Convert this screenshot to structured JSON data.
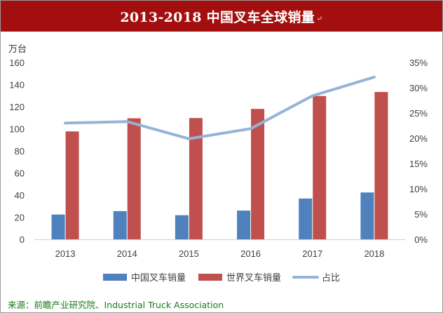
{
  "header": {
    "title": "2013-2018 中国叉车全球销量",
    "title_mark": "↵",
    "background_color": "#a30f0f"
  },
  "chart_data": {
    "type": "bar",
    "categories": [
      "2013",
      "2014",
      "2015",
      "2016",
      "2017",
      "2018"
    ],
    "series": [
      {
        "name": "中国叉车销量",
        "type": "bar",
        "axis": "left",
        "color": "#4f81bd",
        "values": [
          22.4,
          25.5,
          21.8,
          26.0,
          36.9,
          42.4
        ]
      },
      {
        "name": "世界叉车销量",
        "type": "bar",
        "axis": "left",
        "color": "#c0504d",
        "values": [
          97.6,
          109.5,
          109.7,
          118.0,
          129.7,
          133.3
        ]
      },
      {
        "name": "占比",
        "type": "line",
        "axis": "right",
        "color": "#95b3d7",
        "values": [
          0.23,
          0.233,
          0.199,
          0.219,
          0.284,
          0.321
        ]
      }
    ],
    "y_unit_label": "万台",
    "ylim": [
      0,
      160
    ],
    "y_ticks": [
      "0",
      "20",
      "40",
      "60",
      "80",
      "100",
      "120",
      "140",
      "160"
    ],
    "y2lim": [
      0,
      0.35
    ],
    "y2_ticks": [
      "0%",
      "5%",
      "10%",
      "15%",
      "20%",
      "25%",
      "30%",
      "35%"
    ],
    "grid": false,
    "legend_position": "bottom"
  },
  "source": {
    "text": "来源：前瞻产业研究院、Industrial Truck Association",
    "color": "#1a7a1a"
  }
}
